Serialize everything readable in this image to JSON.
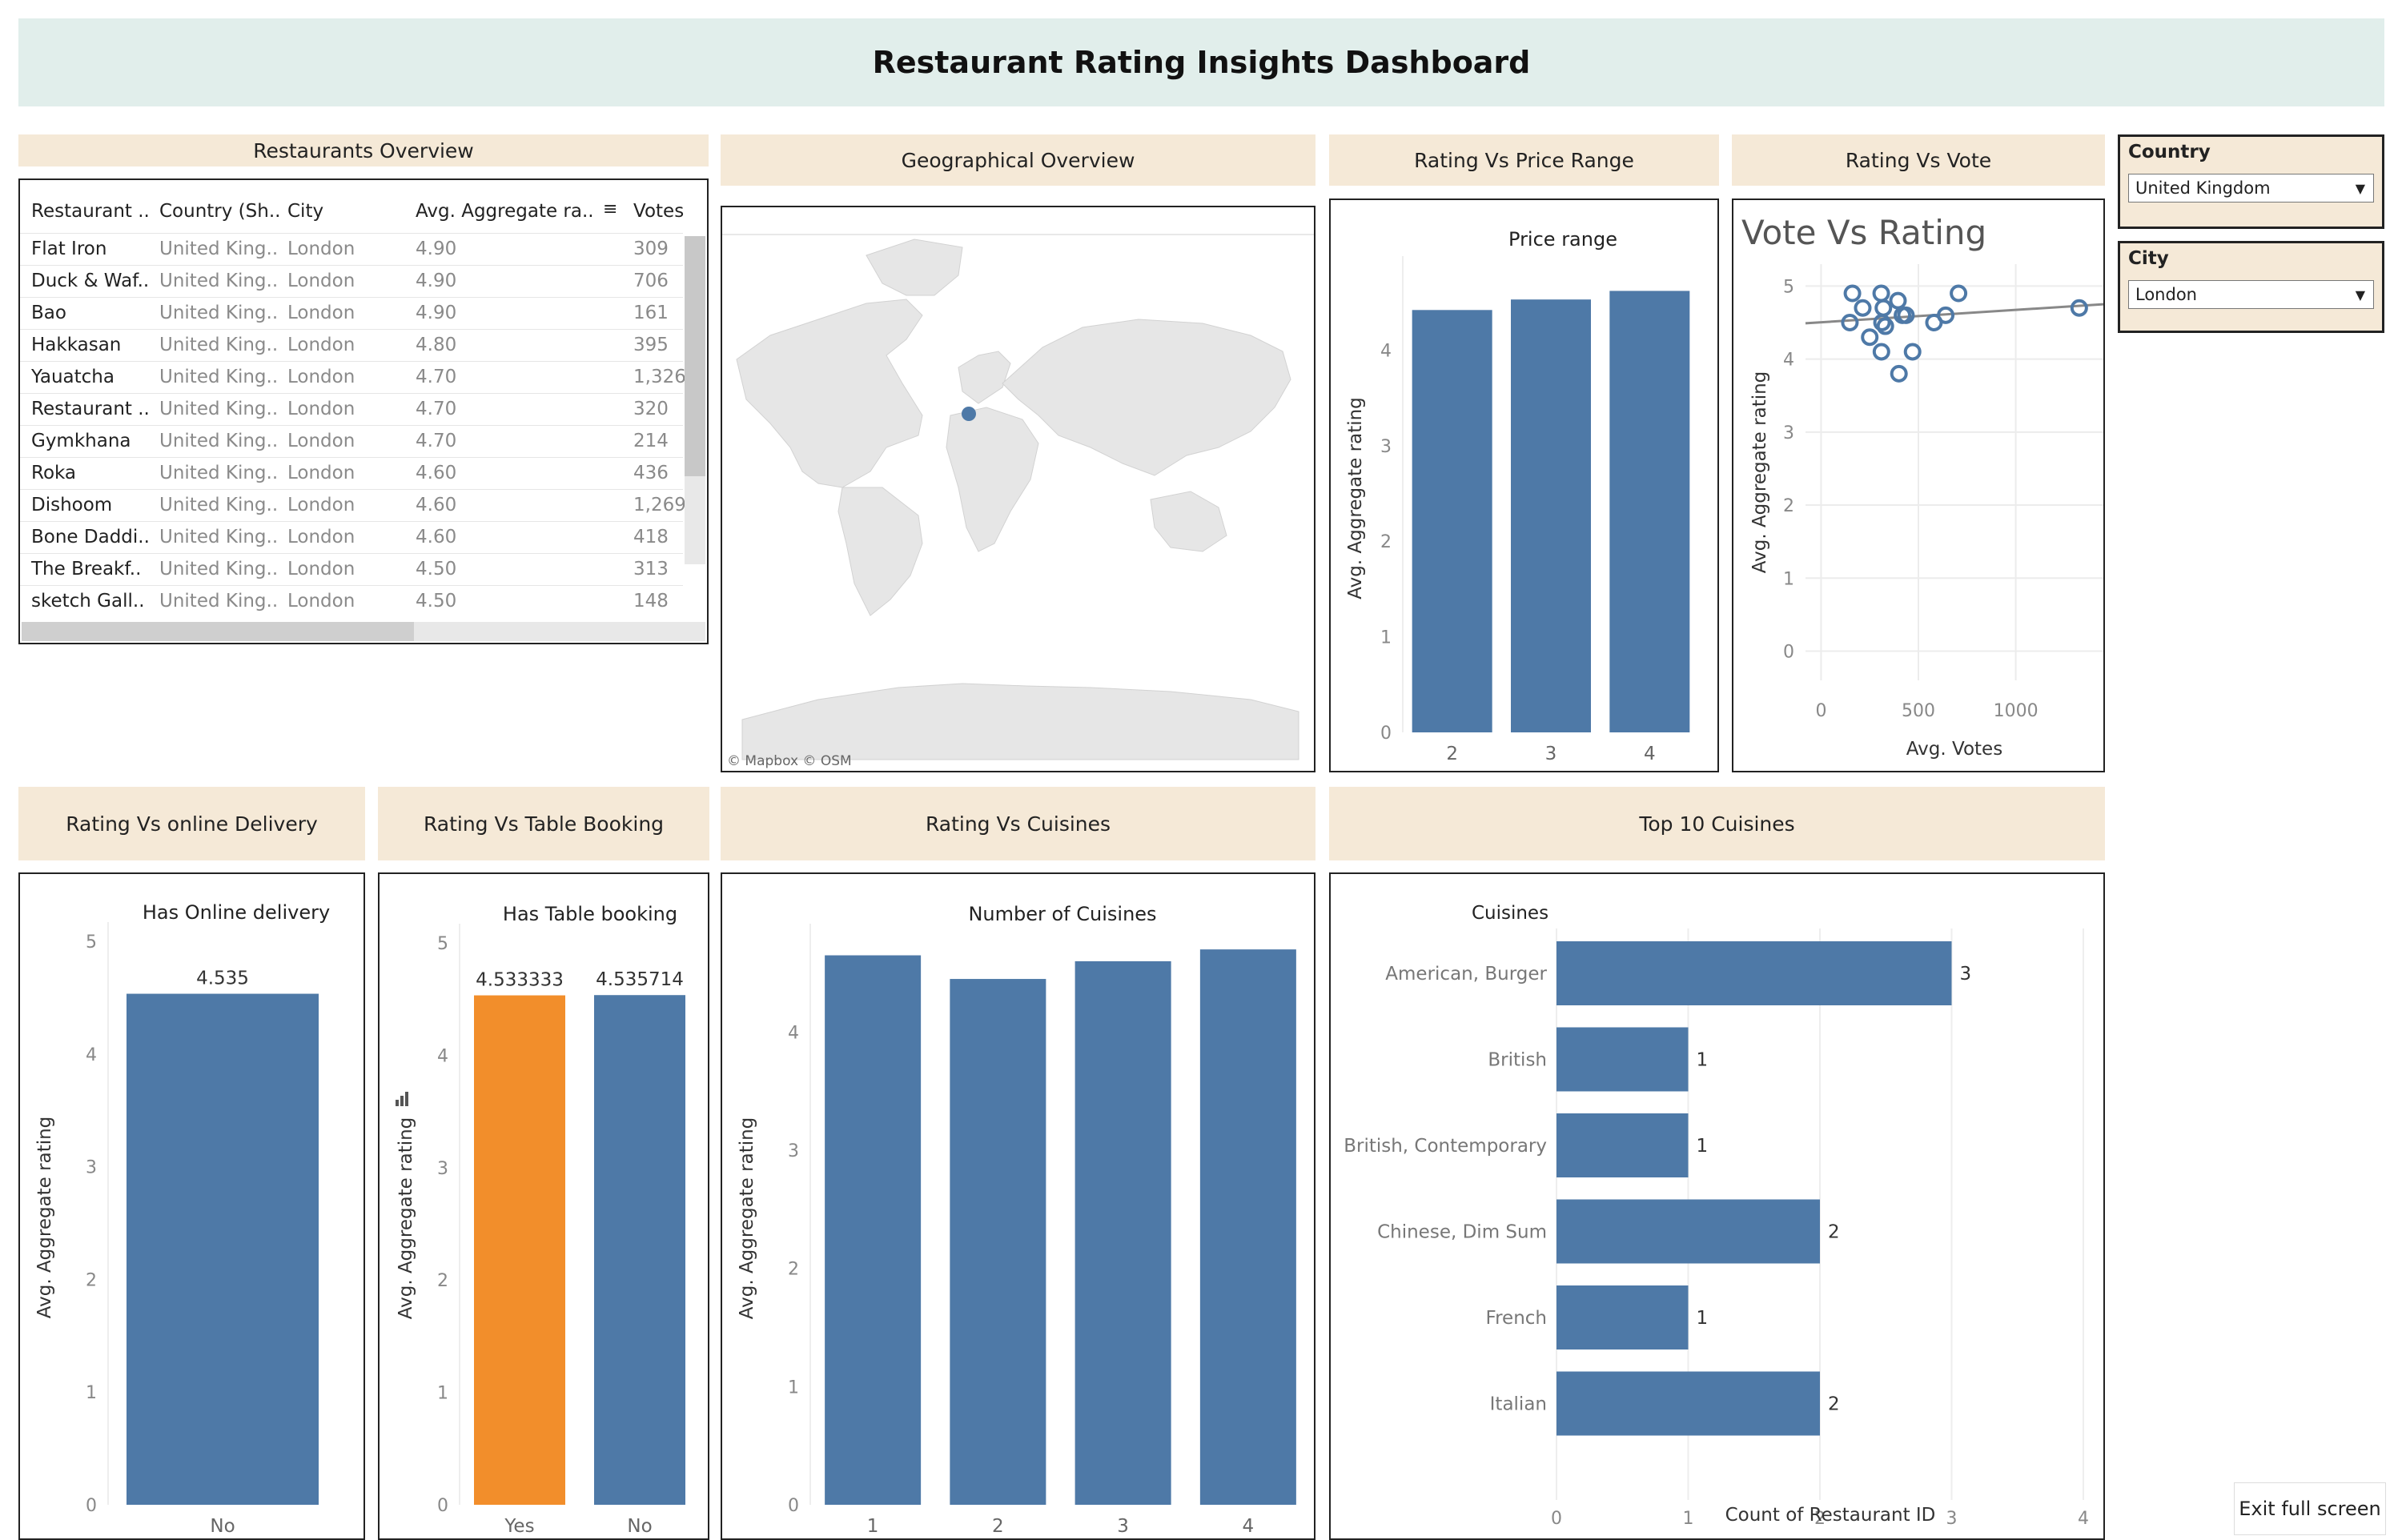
{
  "dashboard_title": "Restaurant Rating Insights Dashboard",
  "sections": {
    "overview": "Restaurants Overview",
    "geo": "Geographical Overview",
    "price": "Rating Vs Price Range",
    "vote": "Rating Vs Vote",
    "delivery": "Rating Vs online Delivery",
    "booking": "Rating Vs Table Booking",
    "cuisines": "Rating Vs Cuisines",
    "top10": "Top 10 Cuisines"
  },
  "filters": {
    "country": {
      "label": "Country",
      "value": "United Kingdom"
    },
    "city": {
      "label": "City",
      "value": "London"
    }
  },
  "table": {
    "headers": [
      "Restaurant ..",
      "Country (Sh..",
      "City",
      "Avg. Aggregate ra..",
      "Votes"
    ],
    "rows": [
      [
        "Flat Iron",
        "United King..",
        "London",
        "4.90",
        "309"
      ],
      [
        "Duck & Waf..",
        "United King..",
        "London",
        "4.90",
        "706"
      ],
      [
        "Bao",
        "United King..",
        "London",
        "4.90",
        "161"
      ],
      [
        "Hakkasan",
        "United King..",
        "London",
        "4.80",
        "395"
      ],
      [
        "Yauatcha",
        "United King..",
        "London",
        "4.70",
        "1,326"
      ],
      [
        "Restaurant ..",
        "United King..",
        "London",
        "4.70",
        "320"
      ],
      [
        "Gymkhana",
        "United King..",
        "London",
        "4.70",
        "214"
      ],
      [
        "Roka",
        "United King..",
        "London",
        "4.60",
        "436"
      ],
      [
        "Dishoom",
        "United King..",
        "London",
        "4.60",
        "1,269"
      ],
      [
        "Bone Daddi..",
        "United King..",
        "London",
        "4.60",
        "418"
      ],
      [
        "The Breakf..",
        "United King..",
        "London",
        "4.50",
        "313"
      ],
      [
        "sketch Gall..",
        "United King..",
        "London",
        "4.50",
        "148"
      ]
    ]
  },
  "map": {
    "attribution": "© Mapbox  © OSM",
    "marker_label": "London"
  },
  "exit_button": "Exit full screen",
  "colors": {
    "bar": "#4e79a7",
    "highlight": "#f28e2b",
    "header_bg": "#f5e9d7",
    "title_bg": "#e1eeeb"
  },
  "chart_data": [
    {
      "id": "price",
      "type": "bar",
      "title": "Price range",
      "xlabel": "",
      "ylabel": "Avg. Aggregate rating",
      "categories": [
        "2",
        "3",
        "4"
      ],
      "values": [
        4.42,
        4.53,
        4.62
      ],
      "ylim": [
        0,
        4.9
      ],
      "yticks": [
        0,
        1,
        2,
        3,
        4
      ],
      "grid": false
    },
    {
      "id": "vote",
      "type": "scatter",
      "title": "Vote Vs Rating",
      "xlabel": "Avg. Votes",
      "ylabel": "Avg. Aggregate rating",
      "xlim": [
        -80,
        1450
      ],
      "ylim": [
        -0.4,
        5.3
      ],
      "xticks": [
        0,
        500,
        1000
      ],
      "yticks": [
        0,
        1,
        2,
        3,
        4,
        5
      ],
      "points": [
        [
          148,
          4.5
        ],
        [
          161,
          4.9
        ],
        [
          214,
          4.7
        ],
        [
          250,
          4.3
        ],
        [
          309,
          4.9
        ],
        [
          313,
          4.5
        ],
        [
          320,
          4.7
        ],
        [
          310,
          4.1
        ],
        [
          330,
          4.45
        ],
        [
          395,
          4.8
        ],
        [
          418,
          4.6
        ],
        [
          436,
          4.6
        ],
        [
          400,
          3.8
        ],
        [
          470,
          4.1
        ],
        [
          580,
          4.5
        ],
        [
          640,
          4.6
        ],
        [
          706,
          4.9
        ],
        [
          1326,
          4.7
        ]
      ],
      "trend": [
        [
          -80,
          4.49
        ],
        [
          1450,
          4.75
        ]
      ],
      "grid": true
    },
    {
      "id": "delivery",
      "type": "bar",
      "title": "Has Online delivery",
      "xlabel": "",
      "ylabel": "Avg. Aggregate rating",
      "categories": [
        "No"
      ],
      "values": [
        4.535
      ],
      "labels": [
        "4.535"
      ],
      "ylim": [
        0,
        5.1
      ],
      "yticks": [
        0,
        1,
        2,
        3,
        4,
        5
      ]
    },
    {
      "id": "booking",
      "type": "bar",
      "title": "Has Table booking",
      "xlabel": "",
      "ylabel": "Avg. Aggregate rating",
      "categories": [
        "Yes",
        "No"
      ],
      "values": [
        4.533333,
        4.535714
      ],
      "labels": [
        "4.533333",
        "4.535714"
      ],
      "colors": [
        "#f28e2b",
        "#4e79a7"
      ],
      "ylim": [
        0,
        5.1
      ],
      "yticks": [
        0,
        1,
        2,
        3,
        4,
        5
      ]
    },
    {
      "id": "cuisines",
      "type": "bar",
      "title": "Number of Cuisines",
      "xlabel": "",
      "ylabel": "Avg. Aggregate rating",
      "categories": [
        "1",
        "2",
        "3",
        "4"
      ],
      "values": [
        4.65,
        4.45,
        4.6,
        4.7
      ],
      "ylim": [
        0,
        4.85
      ],
      "yticks": [
        0,
        1,
        2,
        3,
        4
      ]
    },
    {
      "id": "top10",
      "type": "hbar",
      "title": "Cuisines",
      "xlabel": "Count of Restaurant ID",
      "ylabel": "",
      "categories": [
        "American, Burger",
        "British",
        "British, Contemporary",
        "Chinese, Dim Sum",
        "French",
        "Italian"
      ],
      "values": [
        3,
        1,
        1,
        2,
        1,
        2
      ],
      "labels": [
        "3",
        "1",
        "1",
        "2",
        "1",
        "2"
      ],
      "xlim": [
        0,
        4
      ],
      "xticks": [
        0,
        1,
        2,
        3,
        4
      ]
    }
  ]
}
